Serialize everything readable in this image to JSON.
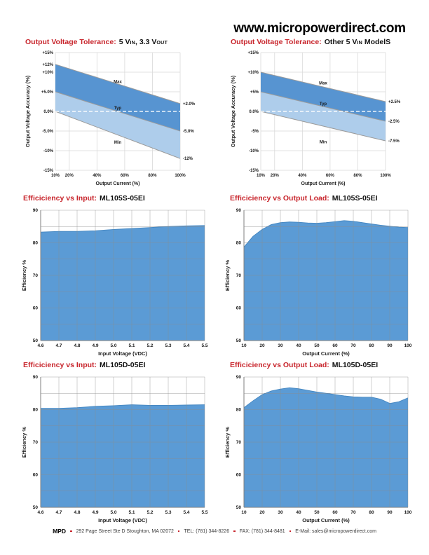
{
  "header": {
    "url": "www.micropowerdirect.com"
  },
  "footer": {
    "brand": "MPD",
    "address": "292 Page Street Ste D Stoughton, MA 02072",
    "tel": "TEL: (781) 344-8226",
    "fax": "FAX: (781) 344-8481",
    "email": "E-Mail: sales@micropowerdirect.com"
  },
  "colors": {
    "title_red": "#c8252c",
    "band_dark": "#5794d1",
    "band_light": "#aecdeb",
    "band_edge": "#9b9b9b",
    "area": "#5b9bd5",
    "area_edge": "#4486c0",
    "grid_light": "#d9d9d9",
    "grid_dark": "#8c8c8c",
    "axis": "#7f7f7f",
    "text": "#1b1b1b",
    "bullet_red": "#c8252c"
  },
  "chart_data": [
    {
      "kind": "tolerance",
      "type": "band-line",
      "title_red": "Output Voltage Tolerance:",
      "title_black_segments": [
        {
          "t": "5 V"
        },
        {
          "t": "IN",
          "sc": true
        },
        {
          "t": ", 3.3 V"
        },
        {
          "t": "OUT",
          "sc": true
        }
      ],
      "ylabel": "Output Voltage Accuracy (%)",
      "xlabel": "Output Current (%)",
      "x_range": [
        10,
        100
      ],
      "y_range": [
        -15,
        15
      ],
      "x_ticks": [
        {
          "v": 10,
          "label": "10%"
        },
        {
          "v": 20,
          "label": "20%"
        },
        {
          "v": 40,
          "label": "40%"
        },
        {
          "v": 60,
          "label": "60%"
        },
        {
          "v": 80,
          "label": "80%"
        },
        {
          "v": 100,
          "label": "100%"
        }
      ],
      "y_ticks": [
        {
          "v": 15,
          "label": "+15%"
        },
        {
          "v": 10,
          "label": "+10%"
        },
        {
          "v": 5,
          "label": "+5.0%"
        },
        {
          "v": 0,
          "label": "0.0%"
        },
        {
          "v": -5,
          "label": "-5.0%"
        },
        {
          "v": -10,
          "label": "-10%"
        },
        {
          "v": -15,
          "label": "-15%"
        }
      ],
      "extra_y_labels": [
        {
          "v": 12,
          "label": "+12%"
        }
      ],
      "lines": {
        "max": {
          "start": 12,
          "end": 2,
          "end_label": "+2.0%"
        },
        "typ": {
          "start": 5,
          "end": -5,
          "end_label": "-5.0%"
        },
        "min": {
          "start": 0,
          "end": -12,
          "end_label": "-12%"
        }
      },
      "zero_line": 0,
      "band_labels": [
        {
          "text": "Max",
          "x": 55,
          "y": 7.6
        },
        {
          "text": "Typ",
          "x": 55,
          "y": 0.9
        },
        {
          "text": "Min",
          "x": 55,
          "y": -7.9
        }
      ]
    },
    {
      "kind": "tolerance",
      "type": "band-line",
      "title_red": "Output Voltage Tolerance:",
      "title_black_segments": [
        {
          "t": "Other 5 V"
        },
        {
          "t": "IN",
          "sc": true
        },
        {
          "t": " ModelS"
        }
      ],
      "ylabel": "Output Voltage Accuracy (%)",
      "xlabel": "Output Current (%)",
      "x_range": [
        10,
        100
      ],
      "y_range": [
        -15,
        15
      ],
      "x_ticks": [
        {
          "v": 10,
          "label": "10%"
        },
        {
          "v": 20,
          "label": "20%"
        },
        {
          "v": 40,
          "label": "40%"
        },
        {
          "v": 60,
          "label": "60%"
        },
        {
          "v": 80,
          "label": "80%"
        },
        {
          "v": 100,
          "label": "100%"
        }
      ],
      "y_ticks": [
        {
          "v": 15,
          "label": "+15%"
        },
        {
          "v": 10,
          "label": "+10%"
        },
        {
          "v": 5,
          "label": "+5%"
        },
        {
          "v": 0,
          "label": "0.0%"
        },
        {
          "v": -5,
          "label": "-5%"
        },
        {
          "v": -10,
          "label": "-10%"
        },
        {
          "v": -15,
          "label": "-15%"
        }
      ],
      "extra_y_labels": [],
      "lines": {
        "max": {
          "start": 10,
          "end": 2.5,
          "end_label": "+2.5%"
        },
        "typ": {
          "start": 5,
          "end": -2.5,
          "end_label": "-2.5%"
        },
        "min": {
          "start": 0,
          "end": -7.5,
          "end_label": "-7.5%"
        }
      },
      "zero_line": 0,
      "band_labels": [
        {
          "text": "Max",
          "x": 55,
          "y": 7.2
        },
        {
          "text": "Typ",
          "x": 55,
          "y": 2.0
        },
        {
          "text": "Min",
          "x": 55,
          "y": -7.8
        }
      ]
    },
    {
      "kind": "area",
      "type": "area",
      "title_red": "Efficiciency vs Input:",
      "title_black_segments": [
        {
          "t": "ML105S-05EI"
        }
      ],
      "ylabel": "Efficiency %",
      "xlabel": "Input Voltage (VDC)",
      "y_range": [
        50,
        90
      ],
      "grid_step_y": 5,
      "y_ticks": [
        {
          "v": 90,
          "label": "90"
        },
        {
          "v": 80,
          "label": "80"
        },
        {
          "v": 70,
          "label": "70"
        },
        {
          "v": 60,
          "label": "60"
        },
        {
          "v": 50,
          "label": "50"
        }
      ],
      "x_ticks": [
        {
          "v": 4.6,
          "label": "4.6"
        },
        {
          "v": 4.7,
          "label": "4.7"
        },
        {
          "v": 4.8,
          "label": "4.8"
        },
        {
          "v": 4.9,
          "label": "4.9"
        },
        {
          "v": 5.0,
          "label": "5.0"
        },
        {
          "v": 5.1,
          "label": "5.1"
        },
        {
          "v": 5.2,
          "label": "5.2"
        },
        {
          "v": 5.3,
          "label": "5.3"
        },
        {
          "v": 5.4,
          "label": "5.4"
        },
        {
          "v": 5.5,
          "label": "5.5"
        }
      ],
      "x": [
        4.6,
        4.7,
        4.8,
        4.9,
        5.0,
        5.1,
        5.2,
        5.3,
        5.4,
        5.5
      ],
      "values": [
        83.3,
        83.5,
        83.5,
        83.7,
        84.1,
        84.4,
        84.7,
        85.0,
        85.2,
        85.3
      ]
    },
    {
      "kind": "area",
      "type": "area",
      "title_red": "Efficiciency vs Output Load:",
      "title_black_segments": [
        {
          "t": "ML105S-05EI"
        }
      ],
      "ylabel": "Efficiency %",
      "xlabel": "Output Current (%)",
      "y_range": [
        50,
        90
      ],
      "grid_step_y": 5,
      "y_ticks": [
        {
          "v": 90,
          "label": "90"
        },
        {
          "v": 80,
          "label": "80"
        },
        {
          "v": 70,
          "label": "70"
        },
        {
          "v": 60,
          "label": "60"
        },
        {
          "v": 50,
          "label": "50"
        }
      ],
      "x_ticks": [
        {
          "v": 10,
          "label": "10"
        },
        {
          "v": 20,
          "label": "20"
        },
        {
          "v": 30,
          "label": "30"
        },
        {
          "v": 40,
          "label": "40"
        },
        {
          "v": 50,
          "label": "50"
        },
        {
          "v": 60,
          "label": "60"
        },
        {
          "v": 70,
          "label": "70"
        },
        {
          "v": 80,
          "label": "80"
        },
        {
          "v": 90,
          "label": "90"
        },
        {
          "v": 100,
          "label": "100"
        }
      ],
      "x": [
        10,
        15,
        20,
        25,
        30,
        35,
        40,
        45,
        50,
        55,
        60,
        65,
        70,
        75,
        80,
        85,
        90,
        95,
        100
      ],
      "values": [
        78.7,
        82.0,
        84.1,
        85.6,
        86.2,
        86.4,
        86.3,
        86.1,
        86.0,
        86.2,
        86.5,
        86.8,
        86.6,
        86.2,
        85.8,
        85.4,
        85.1,
        84.8,
        84.7
      ]
    },
    {
      "kind": "area",
      "type": "area",
      "title_red": "Efficiciency vs Input:",
      "title_black_segments": [
        {
          "t": "ML105D-05EI"
        }
      ],
      "ylabel": "Efficiency %",
      "xlabel": "Input Voltage (VDC)",
      "y_range": [
        50,
        90
      ],
      "grid_step_y": 5,
      "y_ticks": [
        {
          "v": 90,
          "label": "90"
        },
        {
          "v": 80,
          "label": "80"
        },
        {
          "v": 70,
          "label": "70"
        },
        {
          "v": 60,
          "label": "60"
        },
        {
          "v": 50,
          "label": "50"
        }
      ],
      "x_ticks": [
        {
          "v": 4.6,
          "label": "4.6"
        },
        {
          "v": 4.7,
          "label": "4.7"
        },
        {
          "v": 4.8,
          "label": "4.8"
        },
        {
          "v": 4.9,
          "label": "4.9"
        },
        {
          "v": 5.0,
          "label": "5.0"
        },
        {
          "v": 5.1,
          "label": "5.1"
        },
        {
          "v": 5.2,
          "label": "5.2"
        },
        {
          "v": 5.3,
          "label": "5.3"
        },
        {
          "v": 5.4,
          "label": "5.4"
        },
        {
          "v": 5.5,
          "label": "5.5"
        }
      ],
      "x": [
        4.6,
        4.7,
        4.8,
        4.9,
        5.0,
        5.1,
        5.2,
        5.3,
        5.4,
        5.5
      ],
      "values": [
        80.4,
        80.4,
        80.6,
        81.0,
        81.2,
        81.5,
        81.3,
        81.3,
        81.4,
        81.5
      ]
    },
    {
      "kind": "area",
      "type": "area",
      "title_red": "Efficiciency vs Output Load:",
      "title_black_segments": [
        {
          "t": "ML105D-05EI"
        }
      ],
      "ylabel": "Efficiency %",
      "xlabel": "Output Current (%)",
      "y_range": [
        50,
        90
      ],
      "grid_step_y": 5,
      "y_ticks": [
        {
          "v": 90,
          "label": "90"
        },
        {
          "v": 80,
          "label": "80"
        },
        {
          "v": 70,
          "label": "70"
        },
        {
          "v": 60,
          "label": "60"
        },
        {
          "v": 50,
          "label": "50"
        }
      ],
      "x_ticks": [
        {
          "v": 10,
          "label": "10"
        },
        {
          "v": 20,
          "label": "20"
        },
        {
          "v": 30,
          "label": "30"
        },
        {
          "v": 40,
          "label": "40"
        },
        {
          "v": 50,
          "label": "50"
        },
        {
          "v": 60,
          "label": "60"
        },
        {
          "v": 70,
          "label": "70"
        },
        {
          "v": 80,
          "label": "80"
        },
        {
          "v": 90,
          "label": "90"
        },
        {
          "v": 100,
          "label": "100"
        }
      ],
      "x": [
        10,
        15,
        20,
        25,
        30,
        35,
        40,
        45,
        50,
        55,
        60,
        65,
        70,
        75,
        80,
        85,
        90,
        95,
        100
      ],
      "values": [
        80.6,
        82.7,
        84.6,
        85.7,
        86.3,
        86.7,
        86.4,
        85.9,
        85.4,
        85.0,
        84.6,
        84.2,
        83.9,
        83.8,
        83.8,
        83.2,
        81.9,
        82.4,
        83.6
      ]
    }
  ]
}
